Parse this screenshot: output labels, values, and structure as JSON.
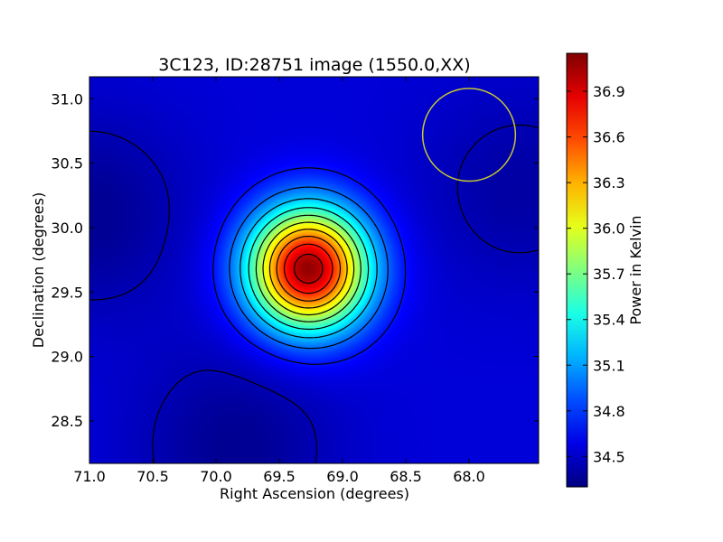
{
  "chart_data": {
    "type": "heatmap",
    "title": "3C123, ID:28751 image (1550.0,XX)",
    "xlabel": "Right Ascension (degrees)",
    "ylabel": "Declination (degrees)",
    "colorbar_label": "Power in Kelvin",
    "xlim": [
      71.0,
      67.45
    ],
    "ylim": [
      28.17,
      31.17
    ],
    "x_ticks": [
      71.0,
      70.5,
      70.0,
      69.5,
      69.0,
      68.5,
      68.0
    ],
    "x_tick_labels": [
      "71.0",
      "70.5",
      "70.0",
      "69.5",
      "69.0",
      "68.5",
      "68.0"
    ],
    "y_ticks": [
      28.5,
      29.0,
      29.5,
      30.0,
      30.5,
      31.0
    ],
    "y_tick_labels": [
      "28.5",
      "29.0",
      "29.5",
      "30.0",
      "30.5",
      "31.0"
    ],
    "colorbar_range": [
      34.3,
      37.15
    ],
    "colorbar_ticks": [
      34.5,
      34.8,
      35.1,
      35.4,
      35.7,
      36.0,
      36.3,
      36.6,
      36.9
    ],
    "colorbar_tick_labels": [
      "34.5",
      "34.8",
      "35.1",
      "35.4",
      "35.7",
      "36.0",
      "36.3",
      "36.6",
      "36.9"
    ],
    "colormap": "jet",
    "peak": {
      "ra": 69.27,
      "dec": 29.68,
      "value": 37.1
    },
    "background_level": 34.55,
    "low_regions": [
      {
        "ra": 71.0,
        "dec": 30.1,
        "value": 34.35
      },
      {
        "ra": 69.85,
        "dec": 28.3,
        "value": 34.35
      },
      {
        "ra": 67.6,
        "dec": 30.3,
        "value": 34.4
      }
    ],
    "contour_levels": [
      34.45,
      34.7,
      34.95,
      35.2,
      35.45,
      35.7,
      35.95,
      36.2,
      36.45,
      36.7,
      36.95
    ],
    "beam_circle": {
      "ra": 68.0,
      "dec": 30.72,
      "radius_deg": 0.36,
      "color": "#c8c832"
    },
    "grid": false
  }
}
